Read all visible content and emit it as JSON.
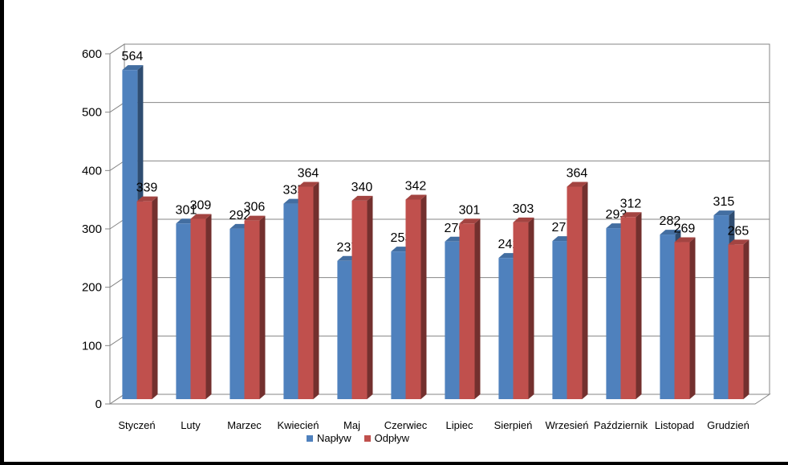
{
  "chart_data": {
    "type": "bar",
    "categories": [
      "Styczeń",
      "Luty",
      "Marzec",
      "Kwiecień",
      "Maj",
      "Czerwiec",
      "Lipiec",
      "Sierpień",
      "Wrzesień",
      "Październik",
      "Listopad",
      "Grudzień"
    ],
    "series": [
      {
        "name": "Napływ",
        "values": [
          564,
          301,
          292,
          335,
          237,
          253,
          270,
          242,
          271,
          293,
          282,
          315
        ],
        "color": "#4F81BD"
      },
      {
        "name": "Odpływ",
        "values": [
          339,
          309,
          306,
          364,
          340,
          342,
          301,
          303,
          364,
          312,
          269,
          265
        ],
        "color": "#C0504D"
      }
    ],
    "y_ticks": [
      "0",
      "100",
      "200",
      "300",
      "400",
      "500",
      "600"
    ],
    "ylim": [
      0,
      600
    ],
    "grid": true,
    "legend_position": "bottom",
    "style": "3d"
  }
}
